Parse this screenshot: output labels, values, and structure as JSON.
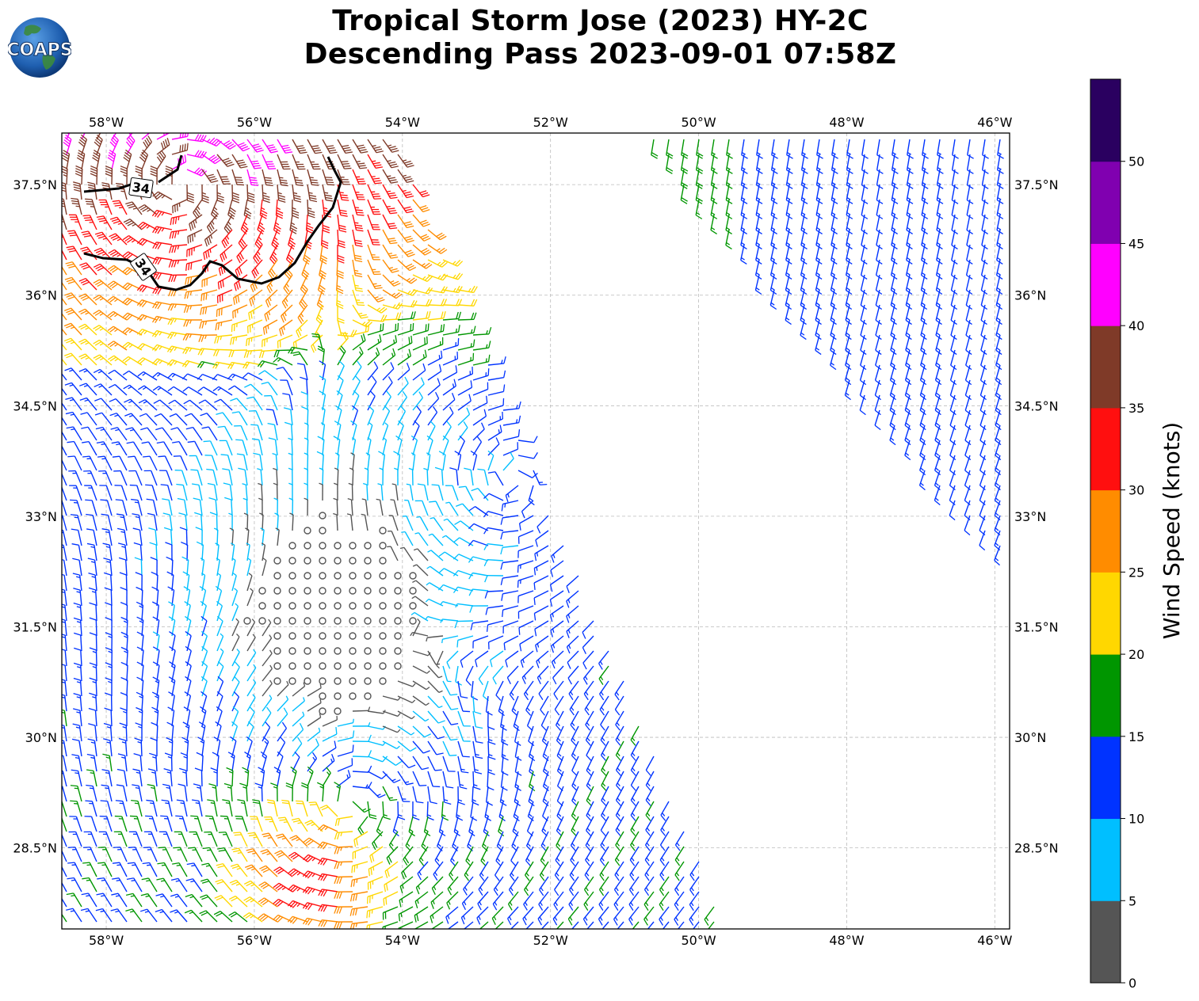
{
  "header": {
    "logo_text": "COAPS",
    "title_line1": "Tropical Storm Jose (2023) HY-2C",
    "title_line2": "Descending Pass 2023-09-01 07:58Z"
  },
  "map": {
    "lon_ticks": [
      "58°W",
      "56°W",
      "54°W",
      "52°W",
      "50°W",
      "48°W",
      "46°W"
    ],
    "lon_values": [
      -58,
      -56,
      -54,
      -52,
      -50,
      -48,
      -46
    ],
    "lat_ticks": [
      "37.5°N",
      "36°N",
      "34.5°N",
      "33°N",
      "31.5°N",
      "30°N",
      "28.5°N"
    ],
    "lat_values": [
      37.5,
      36,
      34.5,
      33,
      31.5,
      30,
      28.5
    ],
    "extent": {
      "lon_min": -58.6,
      "lon_max": -45.8,
      "lat_min": 27.4,
      "lat_max": 38.2
    },
    "gridlines": true,
    "contour_label": "34",
    "contour_color": "#000000",
    "storm_centers": [
      {
        "lon": -54.7,
        "lat": 29.1
      },
      {
        "lon": -52.5,
        "lat": 33.5
      },
      {
        "lon": -57.0,
        "lat": 37.5
      }
    ]
  },
  "colorbar": {
    "label": "Wind Speed (knots)",
    "tick_labels": [
      "0",
      "5",
      "10",
      "15",
      "20",
      "25",
      "30",
      "35",
      "40",
      "45",
      "50"
    ],
    "bins": [
      {
        "min": 0,
        "max": 5,
        "color": "#555555"
      },
      {
        "min": 5,
        "max": 10,
        "color": "#00bfff"
      },
      {
        "min": 10,
        "max": 15,
        "color": "#0033ff"
      },
      {
        "min": 15,
        "max": 20,
        "color": "#009600"
      },
      {
        "min": 20,
        "max": 25,
        "color": "#ffd700"
      },
      {
        "min": 25,
        "max": 30,
        "color": "#ff8c00"
      },
      {
        "min": 30,
        "max": 35,
        "color": "#ff0f0f"
      },
      {
        "min": 35,
        "max": 40,
        "color": "#7f3a28"
      },
      {
        "min": 40,
        "max": 45,
        "color": "#ff00ff"
      },
      {
        "min": 45,
        "max": 50,
        "color": "#8000b0"
      },
      {
        "min": 50,
        "max": 55,
        "color": "#2a0060"
      }
    ]
  }
}
